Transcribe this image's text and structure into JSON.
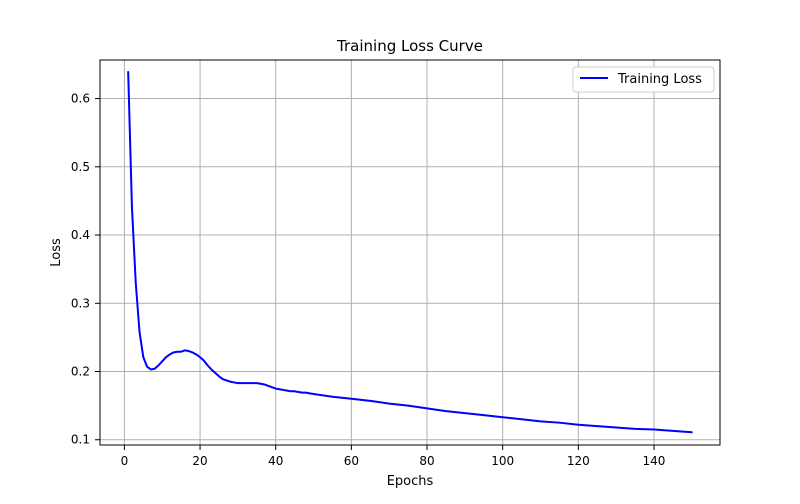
{
  "chart_data": {
    "type": "line",
    "title": "Training Loss Curve",
    "xlabel": "Epochs",
    "ylabel": "Loss",
    "xlim": [
      -6.45,
      157.45
    ],
    "ylim": [
      0.0923,
      0.6565
    ],
    "xticks": [
      0,
      20,
      40,
      60,
      80,
      100,
      120,
      140
    ],
    "yticks": [
      0.1,
      0.2,
      0.3,
      0.4,
      0.5,
      0.6
    ],
    "grid": true,
    "legend_position": "top-right",
    "series": [
      {
        "name": "Training Loss",
        "color": "#0000ff",
        "x": [
          1,
          2,
          3,
          4,
          5,
          6,
          7,
          8,
          9,
          10,
          11,
          12,
          13,
          14,
          15,
          16,
          17,
          18,
          19,
          20,
          21,
          22,
          23,
          24,
          25,
          26,
          27,
          28,
          29,
          30,
          31,
          32,
          33,
          34,
          35,
          36,
          37,
          38,
          39,
          40,
          41,
          42,
          43,
          44,
          45,
          46,
          47,
          48,
          49,
          50,
          55,
          60,
          65,
          70,
          75,
          80,
          85,
          90,
          95,
          100,
          105,
          110,
          115,
          120,
          125,
          130,
          135,
          140,
          145,
          150
        ],
        "y": [
          0.639,
          0.44,
          0.33,
          0.258,
          0.221,
          0.207,
          0.203,
          0.204,
          0.209,
          0.215,
          0.221,
          0.225,
          0.228,
          0.229,
          0.229,
          0.231,
          0.23,
          0.228,
          0.225,
          0.221,
          0.216,
          0.209,
          0.203,
          0.198,
          0.193,
          0.189,
          0.187,
          0.185,
          0.184,
          0.183,
          0.183,
          0.183,
          0.183,
          0.183,
          0.183,
          0.182,
          0.181,
          0.179,
          0.177,
          0.175,
          0.174,
          0.173,
          0.172,
          0.171,
          0.171,
          0.17,
          0.169,
          0.169,
          0.168,
          0.167,
          0.163,
          0.16,
          0.157,
          0.153,
          0.15,
          0.146,
          0.142,
          0.139,
          0.136,
          0.133,
          0.13,
          0.127,
          0.125,
          0.122,
          0.12,
          0.118,
          0.116,
          0.115,
          0.113,
          0.111
        ]
      }
    ]
  }
}
